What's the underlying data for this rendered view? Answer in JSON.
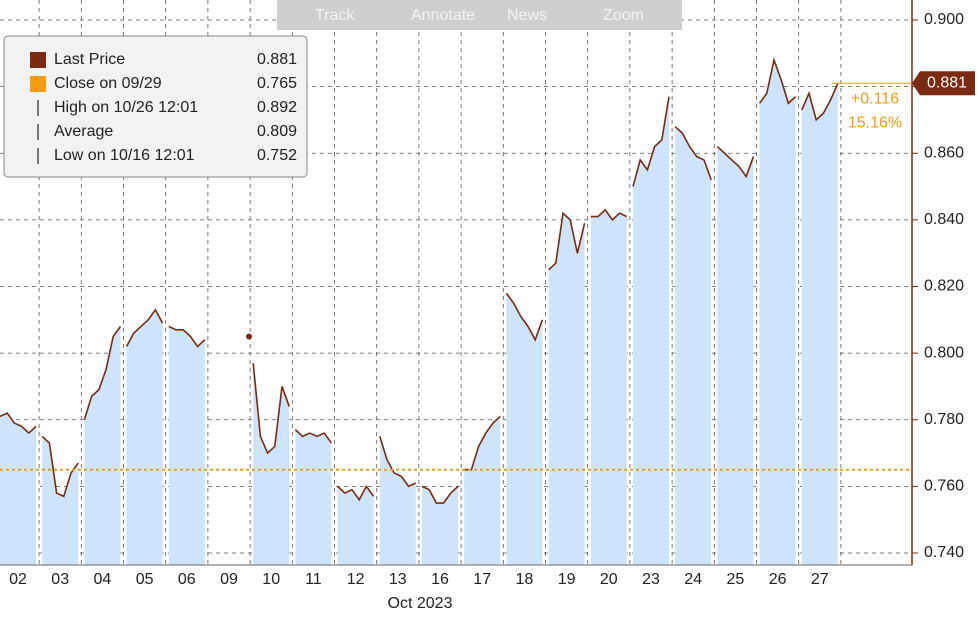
{
  "chart_data": {
    "type": "line",
    "toolbar": [
      "Track",
      "Annotate",
      "News",
      "Zoom"
    ],
    "categories": [
      "02",
      "03",
      "04",
      "05",
      "06",
      "09",
      "10",
      "11",
      "12",
      "13",
      "16",
      "17",
      "18",
      "19",
      "20",
      "23",
      "24",
      "25",
      "26",
      "27"
    ],
    "x_label": "Oct 2023",
    "series": [
      {
        "name": "Last Price",
        "color": "#7a2a10",
        "fill": "#cde4fb",
        "values": [
          [
            0.781,
            0.782,
            0.779,
            0.778,
            0.776,
            0.778
          ],
          [
            0.775,
            0.773,
            0.758,
            0.757,
            0.764,
            0.767
          ],
          [
            0.78,
            0.787,
            0.789,
            0.795,
            0.805,
            0.808
          ],
          [
            0.802,
            0.806,
            0.808,
            0.81,
            0.813,
            0.809
          ],
          [
            0.808,
            0.807,
            0.807,
            0.805,
            0.802,
            0.804
          ],
          [
            0.805
          ],
          [
            0.797,
            0.775,
            0.77,
            0.772,
            0.79,
            0.784
          ],
          [
            0.777,
            0.775,
            0.776,
            0.775,
            0.776,
            0.773
          ],
          [
            0.76,
            0.758,
            0.759,
            0.756,
            0.76,
            0.757
          ],
          [
            0.775,
            0.768,
            0.764,
            0.763,
            0.76,
            0.761
          ],
          [
            0.76,
            0.759,
            0.755,
            0.755,
            0.758,
            0.76
          ],
          [
            0.765,
            0.765,
            0.772,
            0.776,
            0.779,
            0.781
          ],
          [
            0.818,
            0.815,
            0.811,
            0.808,
            0.804,
            0.81
          ],
          [
            0.825,
            0.827,
            0.842,
            0.84,
            0.83,
            0.839
          ],
          [
            0.841,
            0.841,
            0.843,
            0.84,
            0.842,
            0.841
          ],
          [
            0.85,
            0.858,
            0.855,
            0.862,
            0.864,
            0.877
          ],
          [
            0.868,
            0.866,
            0.862,
            0.859,
            0.858,
            0.852
          ],
          [
            0.862,
            0.86,
            0.858,
            0.856,
            0.853,
            0.859
          ],
          [
            0.875,
            0.878,
            0.888,
            0.882,
            0.875,
            0.877
          ],
          [
            0.873,
            0.878,
            0.87,
            0.872,
            0.876,
            0.881
          ]
        ]
      }
    ],
    "reference_line": {
      "value": 0.765,
      "color": "#f39c12"
    },
    "last_price": 0.881,
    "annotations": [
      "+0.116",
      "15.16%"
    ],
    "legend": [
      {
        "label": "Last Price",
        "value": 0.881
      },
      {
        "label": "Close on 09/29",
        "value": 0.765
      },
      {
        "label": "High on 10/26 12:01",
        "value": 0.892
      },
      {
        "label": "Average",
        "value": 0.809
      },
      {
        "label": "Low on 10/16 12:01",
        "value": 0.752
      }
    ],
    "ylim": [
      0.7364,
      0.906
    ],
    "yticks": [
      {
        "value": 0.74,
        "label": "0.740"
      },
      {
        "value": 0.76,
        "label": "0.760"
      },
      {
        "value": 0.78,
        "label": "0.780"
      },
      {
        "value": 0.8,
        "label": "0.800"
      },
      {
        "value": 0.82,
        "label": "0.820"
      },
      {
        "value": 0.84,
        "label": "0.840"
      },
      {
        "value": 0.86,
        "label": "0.860"
      },
      {
        "value": 0.88,
        "label": "0.880"
      },
      {
        "value": 0.9,
        "label": "0.900"
      }
    ],
    "grid": true
  }
}
